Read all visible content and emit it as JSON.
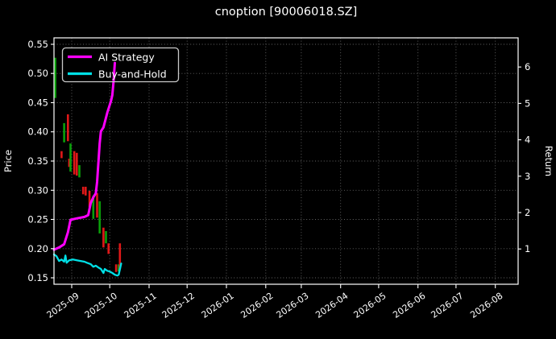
{
  "title": "cnoption [90006018.SZ]",
  "legend": {
    "items": [
      {
        "label": "AI Strategy",
        "color": "#ff00ff"
      },
      {
        "label": "Buy-and-Hold",
        "color": "#00e0e6"
      }
    ]
  },
  "colors": {
    "background": "#000000",
    "text": "#ffffff",
    "grid": "#666666",
    "spine": "#ffffff"
  },
  "chart_data": {
    "type": "line",
    "has_candlestick_overlay": true,
    "title": "cnoption [90006018.SZ]",
    "xlabel": "",
    "ylabel_left": "Price",
    "ylabel_right": "Return",
    "grid": true,
    "legend_position": "upper left",
    "x_axis": {
      "min": "2025-08-18",
      "max": "2026-08-19",
      "ticks": [
        "2025-09",
        "2025-10",
        "2025-11",
        "2025-12",
        "2026-01",
        "2026-02",
        "2026-03",
        "2026-04",
        "2026-05",
        "2026-06",
        "2026-07",
        "2026-08"
      ],
      "tick_rotation": -35
    },
    "price_axis": {
      "min": 0.139,
      "max": 0.561,
      "ticks": [
        0.15,
        0.2,
        0.25,
        0.3,
        0.35,
        0.4,
        0.45,
        0.5,
        0.55
      ]
    },
    "return_axis": {
      "min": 0.03,
      "max": 6.8,
      "ticks": [
        1,
        2,
        3,
        4,
        5,
        6
      ]
    },
    "series": [
      {
        "name": "AI Strategy",
        "axis": "return",
        "color": "#ff00ff",
        "line_width": 3,
        "points": [
          [
            "2025-08-18",
            0.98
          ],
          [
            "2025-08-22",
            1.04
          ],
          [
            "2025-08-26",
            1.13
          ],
          [
            "2025-08-29",
            1.46
          ],
          [
            "2025-08-31",
            1.8
          ],
          [
            "2025-09-05",
            1.84
          ],
          [
            "2025-09-11",
            1.88
          ],
          [
            "2025-09-14",
            1.93
          ],
          [
            "2025-09-16",
            2.26
          ],
          [
            "2025-09-18",
            2.42
          ],
          [
            "2025-09-20",
            2.53
          ],
          [
            "2025-09-21",
            2.84
          ],
          [
            "2025-09-23",
            3.9
          ],
          [
            "2025-09-24",
            4.23
          ],
          [
            "2025-09-26",
            4.34
          ],
          [
            "2025-09-29",
            4.74
          ],
          [
            "2025-10-02",
            5.07
          ],
          [
            "2025-10-03",
            5.23
          ],
          [
            "2025-10-04",
            5.62
          ],
          [
            "2025-10-05",
            6.11
          ]
        ]
      },
      {
        "name": "Buy-and-Hold",
        "axis": "return",
        "color": "#00e0e6",
        "line_width": 2.3,
        "points": [
          [
            "2025-08-18",
            0.85
          ],
          [
            "2025-08-20",
            0.8
          ],
          [
            "2025-08-22",
            0.67
          ],
          [
            "2025-08-24",
            0.71
          ],
          [
            "2025-08-26",
            0.65
          ],
          [
            "2025-08-27",
            0.82
          ],
          [
            "2025-08-28",
            0.62
          ],
          [
            "2025-08-30",
            0.69
          ],
          [
            "2025-09-02",
            0.71
          ],
          [
            "2025-09-05",
            0.69
          ],
          [
            "2025-09-08",
            0.67
          ],
          [
            "2025-09-11",
            0.65
          ],
          [
            "2025-09-13",
            0.62
          ],
          [
            "2025-09-16",
            0.58
          ],
          [
            "2025-09-18",
            0.51
          ],
          [
            "2025-09-20",
            0.54
          ],
          [
            "2025-09-22",
            0.49
          ],
          [
            "2025-09-24",
            0.45
          ],
          [
            "2025-09-26",
            0.34
          ],
          [
            "2025-09-27",
            0.45
          ],
          [
            "2025-09-29",
            0.4
          ],
          [
            "2025-10-01",
            0.38
          ],
          [
            "2025-10-03",
            0.34
          ],
          [
            "2025-10-05",
            0.29
          ],
          [
            "2025-10-07",
            0.27
          ],
          [
            "2025-10-08",
            0.29
          ],
          [
            "2025-10-10",
            0.6
          ]
        ]
      }
    ],
    "candles": {
      "up_color": "#0aa00a",
      "down_color": "#e01818",
      "items": [
        [
          "2025-08-19",
          0.527,
          0.458,
          "up"
        ],
        [
          "2025-08-24",
          0.367,
          0.355,
          "down"
        ],
        [
          "2025-08-26",
          0.415,
          0.382,
          "up"
        ],
        [
          "2025-08-29",
          0.43,
          0.384,
          "down"
        ],
        [
          "2025-08-30",
          0.354,
          0.34,
          "down"
        ],
        [
          "2025-08-31",
          0.38,
          0.332,
          "up"
        ],
        [
          "2025-09-03",
          0.367,
          0.327,
          "down"
        ],
        [
          "2025-09-05",
          0.364,
          0.325,
          "down"
        ],
        [
          "2025-09-07",
          0.343,
          0.322,
          "up"
        ],
        [
          "2025-09-10",
          0.306,
          0.293,
          "down"
        ],
        [
          "2025-09-12",
          0.306,
          0.291,
          "down"
        ],
        [
          "2025-09-15",
          0.299,
          0.271,
          "down"
        ],
        [
          "2025-09-18",
          0.291,
          0.251,
          "up"
        ],
        [
          "2025-09-21",
          0.295,
          0.253,
          "down"
        ],
        [
          "2025-09-23",
          0.281,
          0.226,
          "up"
        ],
        [
          "2025-09-26",
          0.236,
          0.202,
          "down"
        ],
        [
          "2025-09-28",
          0.23,
          0.209,
          "up"
        ],
        [
          "2025-09-30",
          0.209,
          0.191,
          "down"
        ],
        [
          "2025-10-06",
          0.173,
          0.16,
          "down"
        ],
        [
          "2025-10-08",
          0.173,
          0.161,
          "up"
        ],
        [
          "2025-10-09",
          0.209,
          0.165,
          "down"
        ]
      ]
    }
  }
}
